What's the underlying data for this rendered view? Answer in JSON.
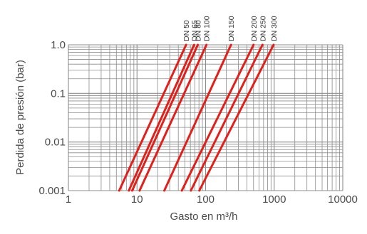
{
  "chart_data": {
    "type": "line",
    "title": "",
    "xlabel": "Gasto en m³/h",
    "ylabel": "Perdida de presión (bar)",
    "x_scale": "log",
    "y_scale": "log",
    "xlim": [
      1,
      10000
    ],
    "ylim": [
      0.001,
      1.0
    ],
    "grid": true,
    "colors": {
      "series": "#e0201b",
      "grid": "#8c8c8c",
      "text": "#4a4a4a"
    },
    "x_ticks": [
      {
        "value": 1,
        "label": "1"
      },
      {
        "value": 10,
        "label": "10"
      },
      {
        "value": 100,
        "label": "100"
      },
      {
        "value": 1000,
        "label": "1000"
      },
      {
        "value": 10000,
        "label": "10000"
      }
    ],
    "y_ticks": [
      {
        "value": 1.0,
        "label": "1.0"
      },
      {
        "value": 0.1,
        "label": "0.1"
      },
      {
        "value": 0.01,
        "label": "0.01"
      },
      {
        "value": 0.001,
        "label": "0.001"
      }
    ],
    "series": [
      {
        "name": "DN 50",
        "x": [
          5.5,
          52
        ],
        "y": [
          0.001,
          1.0
        ]
      },
      {
        "name": "DN 65",
        "x": [
          7.6,
          68
        ],
        "y": [
          0.001,
          1.0
        ]
      },
      {
        "name": "DN 80",
        "x": [
          8.5,
          77
        ],
        "y": [
          0.001,
          1.0
        ]
      },
      {
        "name": "DN 100",
        "x": [
          10.9,
          103
        ],
        "y": [
          0.001,
          1.0
        ]
      },
      {
        "name": "DN 150",
        "x": [
          25,
          235
        ],
        "y": [
          0.001,
          1.0
        ]
      },
      {
        "name": "DN 200",
        "x": [
          45,
          500
        ],
        "y": [
          0.001,
          1.0
        ]
      },
      {
        "name": "DN 250",
        "x": [
          61,
          675
        ],
        "y": [
          0.001,
          1.0
        ]
      },
      {
        "name": "DN 300",
        "x": [
          81,
          980
        ],
        "y": [
          0.001,
          1.0
        ]
      }
    ]
  }
}
